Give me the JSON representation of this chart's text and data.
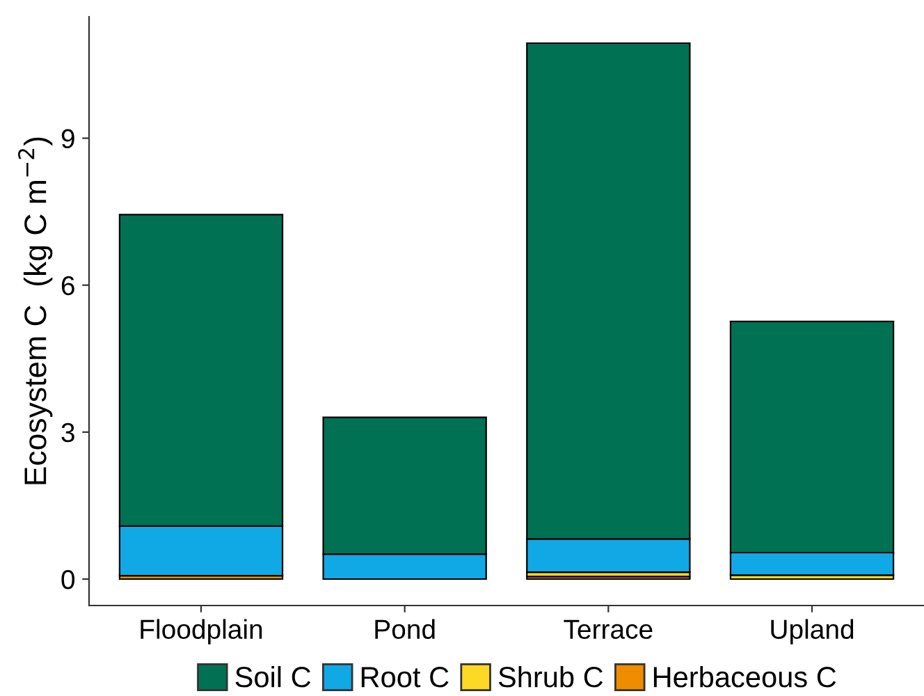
{
  "chart_data": {
    "type": "bar",
    "stacked": true,
    "ylabel": "Ecosystem C  (kg C m$^{−2}$)",
    "categories": [
      "Floodplain",
      "Pond",
      "Terrace",
      "Upland"
    ],
    "series": [
      {
        "name": "Herbaceous C",
        "color": "#ef8c00",
        "values": [
          0.07,
          0,
          0.05,
          0
        ]
      },
      {
        "name": "Shrub C",
        "color": "#fdd825",
        "values": [
          0,
          0,
          0.09,
          0.08
        ]
      },
      {
        "name": "Root C",
        "color": "#11a8e6",
        "values": [
          1.01,
          0.51,
          0.68,
          0.46
        ]
      },
      {
        "name": "Soil C",
        "color": "#007253",
        "values": [
          6.36,
          2.79,
          10.12,
          4.72
        ]
      }
    ],
    "ylim": [
      -0.54,
      11.48
    ],
    "yticks": [
      0,
      3,
      6,
      9
    ],
    "grid": false,
    "legend": "bottom"
  }
}
